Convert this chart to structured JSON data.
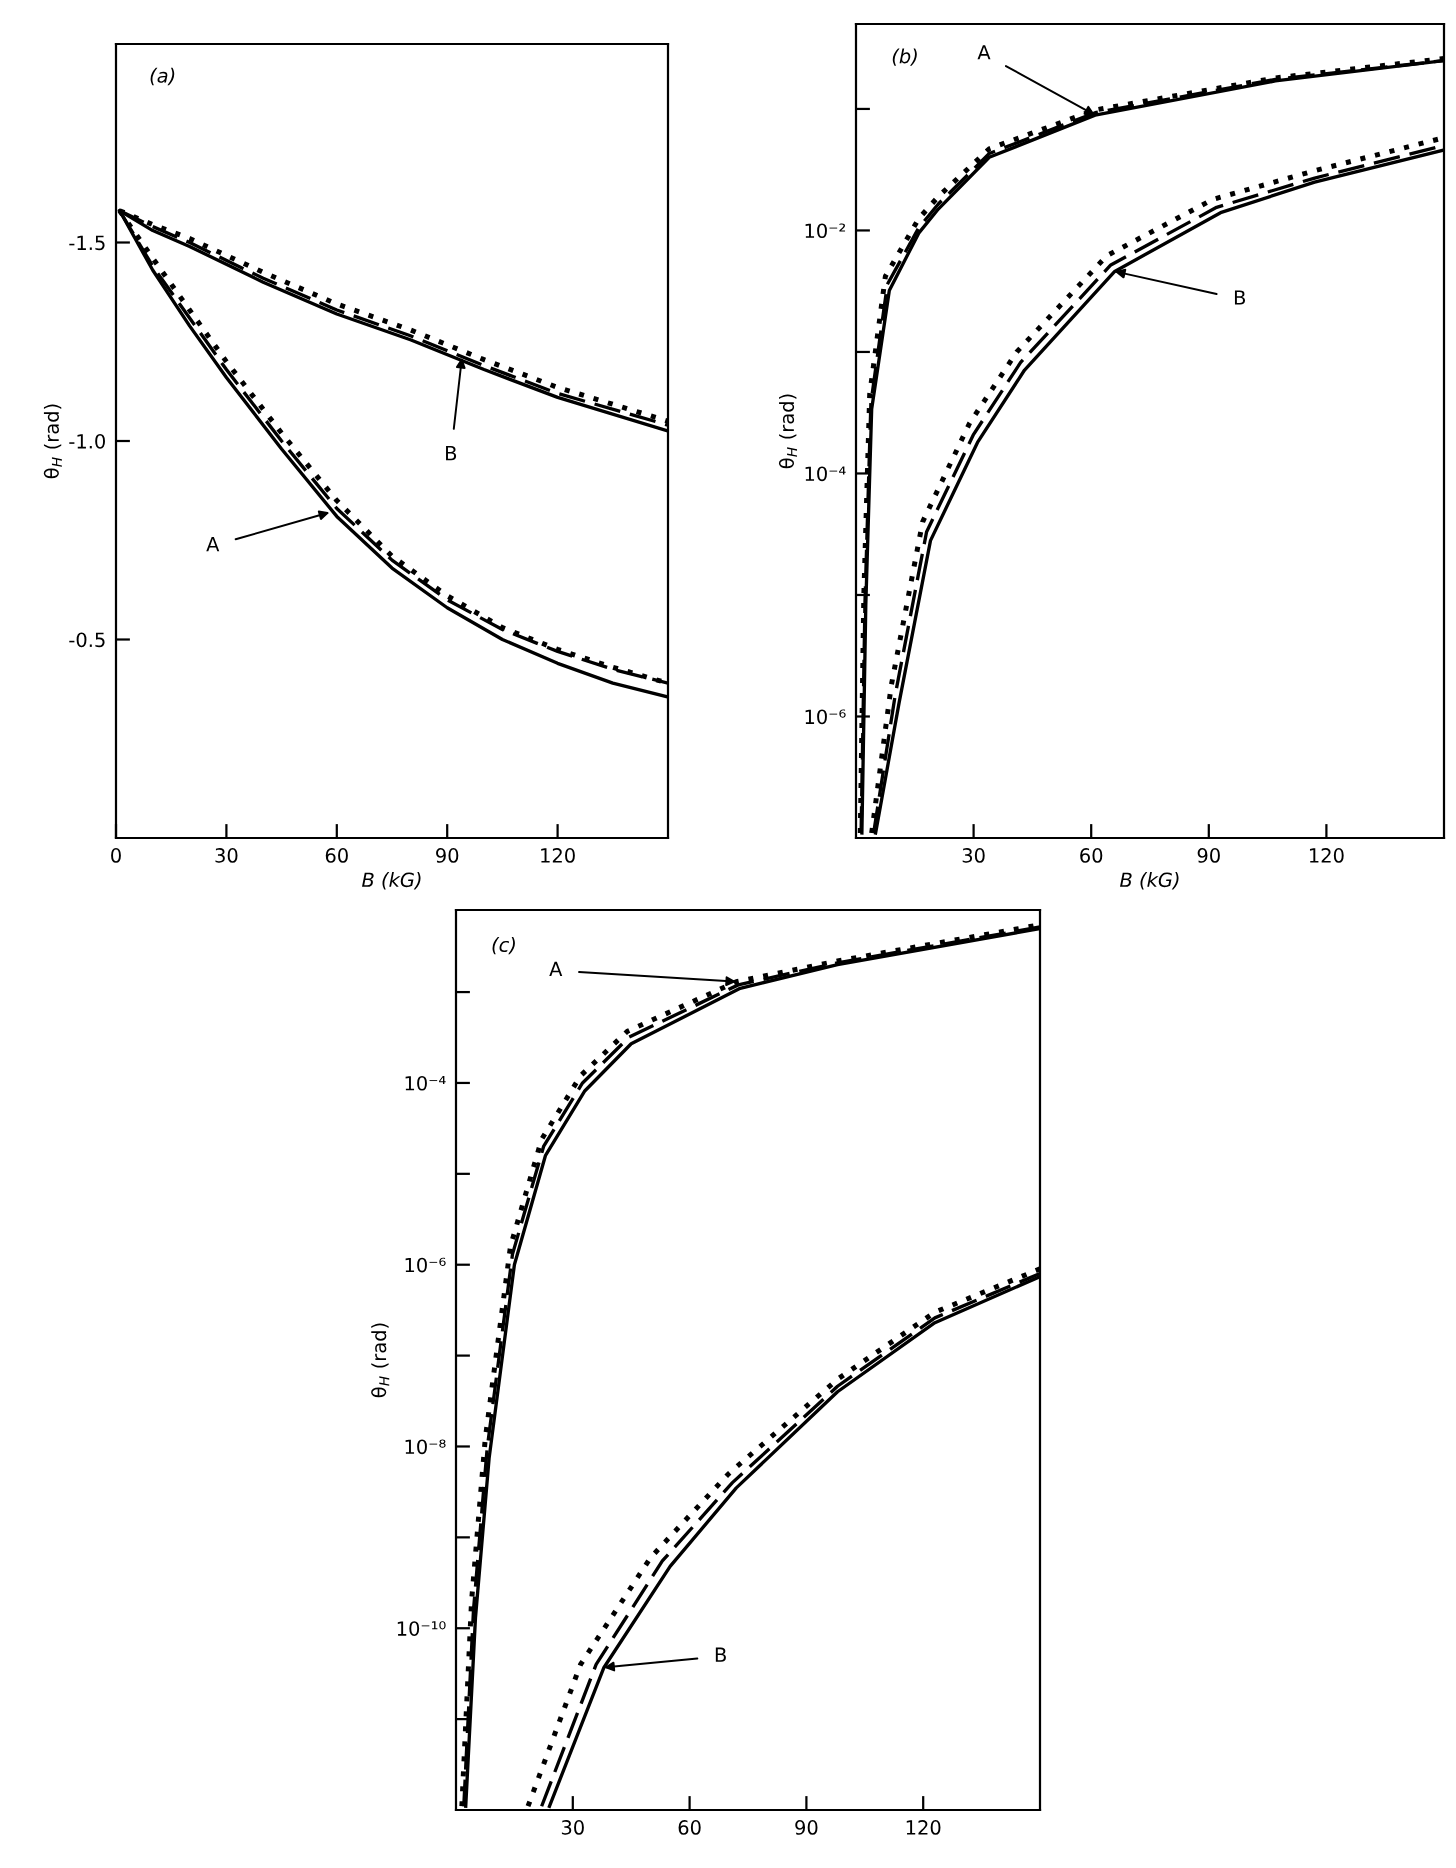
{
  "chart_data": [
    {
      "type": "line",
      "title": "(a)",
      "xlabel": "B (kG)",
      "ylabel": "θ$_{H}$ (rad)",
      "xlim": [
        0,
        150
      ],
      "xticks": [
        0,
        30,
        60,
        90,
        120
      ],
      "ylim": [
        0,
        -2.0
      ],
      "yticks": [
        {
          "value": -1.5,
          "label": "-1.5"
        },
        {
          "value": -1.0,
          "label": "-1.0"
        },
        {
          "value": -0.5,
          "label": "-0.5"
        }
      ],
      "series": [
        {
          "color": "#000000",
          "line_style": "solid",
          "x": [
            1,
            10,
            20,
            40,
            60,
            80,
            100,
            120,
            150
          ],
          "values": [
            -1.58,
            -1.53,
            -1.49,
            -1.4,
            -1.32,
            -1.255,
            -1.18,
            -1.11,
            -1.025
          ]
        },
        {
          "color": "#000000",
          "line_style": "dashed",
          "x": [
            1,
            10,
            20,
            40,
            60,
            80,
            100,
            120,
            150
          ],
          "values": [
            -1.58,
            -1.54,
            -1.5,
            -1.41,
            -1.33,
            -1.265,
            -1.19,
            -1.12,
            -1.04
          ]
        },
        {
          "color": "#000000",
          "line_style": "dotted",
          "x": [
            1,
            10,
            20,
            40,
            60,
            80,
            100,
            120,
            150
          ],
          "values": [
            -1.58,
            -1.545,
            -1.51,
            -1.425,
            -1.345,
            -1.28,
            -1.205,
            -1.135,
            -1.05
          ]
        },
        {
          "color": "#000000",
          "line_style": "solid",
          "x": [
            1,
            10,
            20,
            30,
            45,
            60,
            75,
            90,
            105,
            120,
            135,
            150
          ],
          "values": [
            -1.58,
            -1.43,
            -1.29,
            -1.16,
            -0.98,
            -0.81,
            -0.68,
            -0.58,
            -0.5,
            -0.44,
            -0.39,
            -0.355
          ]
        },
        {
          "color": "#000000",
          "line_style": "dashed",
          "x": [
            1,
            10,
            20,
            30,
            45,
            60,
            75,
            90,
            105,
            120,
            135,
            150
          ],
          "values": [
            -1.58,
            -1.44,
            -1.31,
            -1.18,
            -1.0,
            -0.83,
            -0.7,
            -0.6,
            -0.525,
            -0.47,
            -0.425,
            -0.39
          ]
        },
        {
          "color": "#000000",
          "line_style": "dotted",
          "x": [
            1,
            10,
            20,
            30,
            45,
            60,
            75,
            90,
            105,
            120,
            135,
            150
          ],
          "values": [
            -1.58,
            -1.46,
            -1.33,
            -1.2,
            -1.02,
            -0.85,
            -0.71,
            -0.61,
            -0.53,
            -0.475,
            -0.43,
            -0.39
          ]
        }
      ],
      "annotations": [
        {
          "text": "A",
          "x": 58,
          "y": -0.82
        },
        {
          "text": "B",
          "x": 94,
          "y": -1.21
        }
      ]
    },
    {
      "type": "line",
      "title": "(b)",
      "xlabel": "B (kG)",
      "ylabel": "θ$_{H}$ (rad)",
      "log": "y",
      "xlim": [
        0,
        150
      ],
      "xticks": [
        30,
        60,
        90,
        120
      ],
      "ylim": [
        1e-07,
        0.5
      ],
      "yticks": [
        {
          "value": 0.1,
          "label": null
        },
        {
          "value": 0.01,
          "label": "10⁻²"
        },
        {
          "value": 0.001,
          "label": null
        },
        {
          "value": 0.0001,
          "label": "10⁻⁴"
        },
        {
          "value": 1e-05,
          "label": null
        },
        {
          "value": 1e-06,
          "label": "10⁻⁶"
        }
      ],
      "series": [
        {
          "color": "#000000",
          "line_style": "solid",
          "x": [
            1.5,
            2.5,
            4,
            8.5,
            16,
            21,
            34,
            61,
            107,
            150
          ],
          "values": [
            1.1e-07,
            8.3e-06,
            0.00034,
            0.0032,
            0.0095,
            0.015,
            0.04,
            0.089,
            0.17,
            0.25
          ]
        },
        {
          "color": "#000000",
          "line_style": "dashed",
          "x": [
            1.3,
            2.3,
            3.8,
            8,
            16,
            21,
            34,
            61,
            107,
            150
          ],
          "values": [
            1.1e-07,
            9e-06,
            0.00038,
            0.0036,
            0.0105,
            0.0165,
            0.043,
            0.093,
            0.175,
            0.25
          ]
        },
        {
          "color": "#000000",
          "line_style": "dotted",
          "x": [
            1.1,
            2,
            3.5,
            7.5,
            16,
            21,
            34,
            61,
            107,
            150
          ],
          "values": [
            1.1e-07,
            1e-05,
            0.00045,
            0.0042,
            0.0125,
            0.019,
            0.047,
            0.098,
            0.18,
            0.26
          ]
        },
        {
          "color": "#000000",
          "line_style": "solid",
          "x": [
            5,
            11,
            19,
            31,
            43,
            66,
            93,
            117,
            150
          ],
          "values": [
            1.1e-07,
            1.3e-06,
            2.8e-05,
            0.00018,
            0.00071,
            0.0046,
            0.014,
            0.025,
            0.046
          ]
        },
        {
          "color": "#000000",
          "line_style": "dashed",
          "x": [
            4.5,
            10,
            18,
            30,
            42,
            65,
            92,
            117,
            150
          ],
          "values": [
            1.1e-07,
            1.5e-06,
            3.3e-05,
            0.00021,
            0.00082,
            0.0052,
            0.0155,
            0.027,
            0.05
          ]
        },
        {
          "color": "#000000",
          "line_style": "dotted",
          "x": [
            4,
            9,
            17,
            29,
            41,
            64,
            91,
            117,
            150
          ],
          "values": [
            1.1e-07,
            1.8e-06,
            4e-05,
            0.00026,
            0.001,
            0.0062,
            0.018,
            0.031,
            0.058
          ]
        }
      ],
      "annotations": [
        {
          "text": "A",
          "x": 61,
          "y": 0.089
        },
        {
          "text": "B",
          "x": 66,
          "y": 0.0046
        }
      ]
    },
    {
      "type": "line",
      "title": "(c)",
      "ylabel": "θ$_{H}$ (rad)",
      "log": "y",
      "xlim": [
        0,
        150
      ],
      "xticks": [
        30,
        60,
        90,
        120
      ],
      "ylim": [
        1e-12,
        0.008
      ],
      "yticks": [
        {
          "value": 0.001,
          "label": null
        },
        {
          "value": 0.0001,
          "label": "10⁻⁴"
        },
        {
          "value": 1e-05,
          "label": null
        },
        {
          "value": 1e-06,
          "label": "10⁻⁶"
        },
        {
          "value": 1e-07,
          "label": null
        },
        {
          "value": 1e-08,
          "label": "10⁻⁸"
        },
        {
          "value": 1e-09,
          "label": null
        },
        {
          "value": 1e-10,
          "label": "10⁻¹⁰"
        },
        {
          "value": 1e-11,
          "label": null
        }
      ],
      "series": [
        {
          "color": "#000000",
          "line_style": "solid",
          "x": [
            2.5,
            5,
            8.5,
            15,
            23,
            33,
            45,
            73,
            98,
            150
          ],
          "values": [
            1.1e-12,
            1.3e-10,
            7.4e-09,
            1e-06,
            1.6e-05,
            8.1e-05,
            0.00027,
            0.0011,
            0.002,
            0.005
          ]
        },
        {
          "color": "#000000",
          "line_style": "dashed",
          "x": [
            2,
            4.5,
            8,
            14.5,
            22.5,
            32.5,
            44.5,
            72.5,
            98,
            150
          ],
          "values": [
            1.1e-12,
            1.6e-10,
            9.5e-09,
            1.3e-06,
            2e-05,
            0.0001,
            0.00032,
            0.0012,
            0.0021,
            0.0052
          ]
        },
        {
          "color": "#000000",
          "line_style": "dotted",
          "x": [
            1.5,
            4,
            7.5,
            14,
            22,
            32,
            44,
            72,
            98,
            150
          ],
          "values": [
            1.1e-12,
            2e-10,
            1.2e-08,
            1.6e-06,
            2.4e-05,
            0.00012,
            0.00037,
            0.0013,
            0.0022,
            0.0055
          ]
        },
        {
          "color": "#000000",
          "line_style": "solid",
          "x": [
            24,
            38,
            55,
            72,
            98,
            123,
            150
          ],
          "values": [
            1.1e-12,
            3.7e-11,
            4.8e-10,
            3.5e-09,
            4e-08,
            2.3e-07,
            7.4e-07
          ]
        },
        {
          "color": "#000000",
          "line_style": "dashed",
          "x": [
            22,
            36,
            53,
            71,
            98,
            123,
            150
          ],
          "values": [
            1.1e-12,
            4e-11,
            5.5e-10,
            4e-09,
            4.6e-08,
            2.6e-07,
            8e-07
          ]
        },
        {
          "color": "#000000",
          "line_style": "dotted",
          "x": [
            18.5,
            32,
            50,
            70,
            98,
            123,
            150
          ],
          "values": [
            1.1e-12,
            4e-11,
            6e-10,
            5e-09,
            5.5e-08,
            3e-07,
            9e-07
          ]
        }
      ],
      "annotations": [
        {
          "text": "A",
          "x": 72,
          "y": 0.0013
        },
        {
          "text": "B",
          "x": 38,
          "y": 3.7e-11
        }
      ]
    }
  ]
}
